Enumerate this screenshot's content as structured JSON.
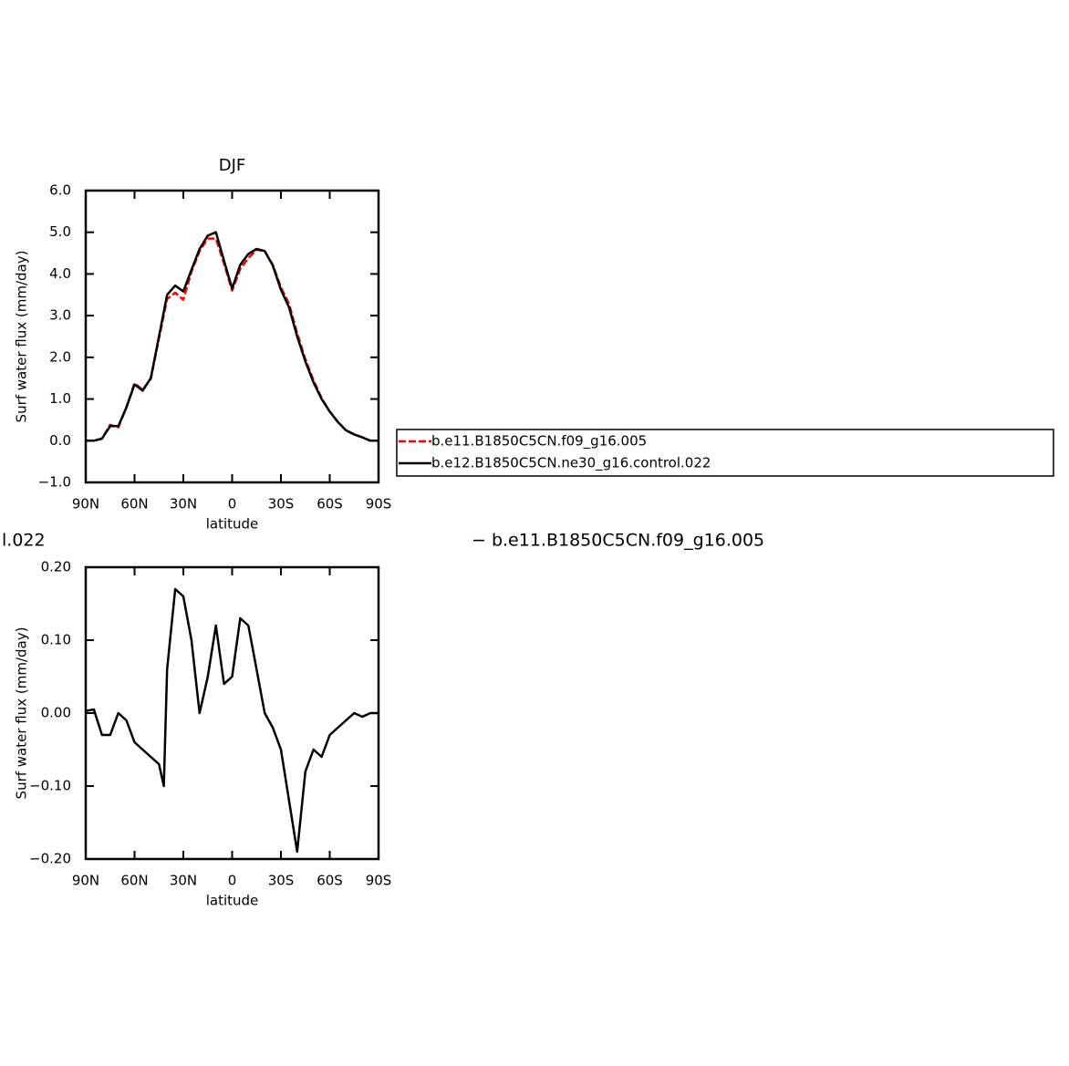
{
  "chart_data": [
    {
      "type": "line",
      "title": "DJF",
      "x_label": "latitude",
      "y_label": "Surf  water flux (mm/day)",
      "x": [
        90,
        85,
        80,
        75,
        70,
        65,
        60,
        55,
        50,
        45,
        40,
        35,
        30,
        25,
        20,
        15,
        10,
        5,
        0,
        -5,
        -10,
        -15,
        -20,
        -25,
        -30,
        -35,
        -40,
        -45,
        -50,
        -55,
        -60,
        -65,
        -70,
        -75,
        -80,
        -85,
        -90
      ],
      "series": [
        {
          "name": "b.e11.B1850C5CN.f09_g16.005",
          "color": "#ff0000",
          "dash": true,
          "values": [
            0.0,
            0.0,
            0.05,
            0.38,
            0.32,
            0.8,
            1.38,
            1.22,
            1.48,
            2.45,
            3.4,
            3.55,
            3.38,
            4.05,
            4.55,
            4.85,
            4.85,
            4.25,
            3.6,
            4.12,
            4.38,
            4.58,
            4.55,
            4.22,
            3.68,
            3.28,
            2.58,
            1.95,
            1.45,
            1.02,
            0.7,
            0.45,
            0.25,
            0.15,
            0.08,
            0.0,
            0.0
          ]
        },
        {
          "name": "b.e12.B1850C5CN.ne30_g16.control.022",
          "color": "#000000",
          "dash": false,
          "values": [
            0.0,
            0.0,
            0.05,
            0.35,
            0.35,
            0.8,
            1.35,
            1.2,
            1.5,
            2.5,
            3.5,
            3.72,
            3.58,
            4.1,
            4.6,
            4.92,
            5.0,
            4.32,
            3.65,
            4.22,
            4.48,
            4.6,
            4.55,
            4.2,
            3.62,
            3.2,
            2.5,
            1.9,
            1.4,
            1.0,
            0.7,
            0.45,
            0.25,
            0.15,
            0.08,
            0.0,
            0.0
          ]
        }
      ],
      "xlim": [
        90,
        -90
      ],
      "xticks": [
        {
          "value": 90,
          "label": "90N"
        },
        {
          "value": 60,
          "label": "60N"
        },
        {
          "value": 30,
          "label": "30N"
        },
        {
          "value": 0,
          "label": "0"
        },
        {
          "value": -30,
          "label": "30S"
        },
        {
          "value": -60,
          "label": "60S"
        },
        {
          "value": -90,
          "label": "90S"
        }
      ],
      "ylim": [
        -1,
        6
      ],
      "yticks": [
        {
          "value": -1,
          "label": "−1.0"
        },
        {
          "value": 0,
          "label": "0.0"
        },
        {
          "value": 1,
          "label": "1.0"
        },
        {
          "value": 2,
          "label": "2.0"
        },
        {
          "value": 3,
          "label": "3.0"
        },
        {
          "value": 4,
          "label": "4.0"
        },
        {
          "value": 5,
          "label": "5.0"
        },
        {
          "value": 6,
          "label": "6.0"
        }
      ],
      "legend": "right"
    },
    {
      "type": "line",
      "subtitle_left": "l.022",
      "subtitle_right": "− b.e11.B1850C5CN.f09_g16.005",
      "x_label": "latitude",
      "y_label": "Surf  water flux (mm/day)",
      "x": [
        90,
        85,
        80,
        75,
        70,
        65,
        60,
        55,
        50,
        45,
        42,
        40,
        35,
        30,
        25,
        20,
        15,
        10,
        5,
        0,
        -5,
        -10,
        -15,
        -20,
        -25,
        -30,
        -35,
        -40,
        -45,
        -50,
        -55,
        -60,
        -65,
        -70,
        -75,
        -80,
        -85,
        -90
      ],
      "series": [
        {
          "color": "#000000",
          "dash": false,
          "values": [
            0.003,
            0.005,
            -0.03,
            -0.03,
            0.0,
            -0.01,
            -0.04,
            -0.05,
            -0.06,
            -0.07,
            -0.1,
            0.06,
            0.17,
            0.16,
            0.1,
            0.0,
            0.05,
            0.12,
            0.04,
            0.05,
            0.13,
            0.12,
            0.06,
            0.0,
            -0.02,
            -0.05,
            -0.12,
            -0.19,
            -0.08,
            -0.05,
            -0.06,
            -0.03,
            -0.02,
            -0.01,
            0.0,
            -0.005,
            0.0,
            0.0
          ]
        }
      ],
      "xlim": [
        90,
        -90
      ],
      "xticks": [
        {
          "value": 90,
          "label": "90N"
        },
        {
          "value": 60,
          "label": "60N"
        },
        {
          "value": 30,
          "label": "30N"
        },
        {
          "value": 0,
          "label": "0"
        },
        {
          "value": -30,
          "label": "30S"
        },
        {
          "value": -60,
          "label": "60S"
        },
        {
          "value": -90,
          "label": "90S"
        }
      ],
      "ylim": [
        -0.2,
        0.2
      ],
      "yticks": [
        {
          "value": -0.2,
          "label": "−0.20"
        },
        {
          "value": -0.1,
          "label": "−0.10"
        },
        {
          "value": 0,
          "label": "0.00"
        },
        {
          "value": 0.1,
          "label": "0.10"
        },
        {
          "value": 0.2,
          "label": "0.20"
        }
      ]
    }
  ]
}
